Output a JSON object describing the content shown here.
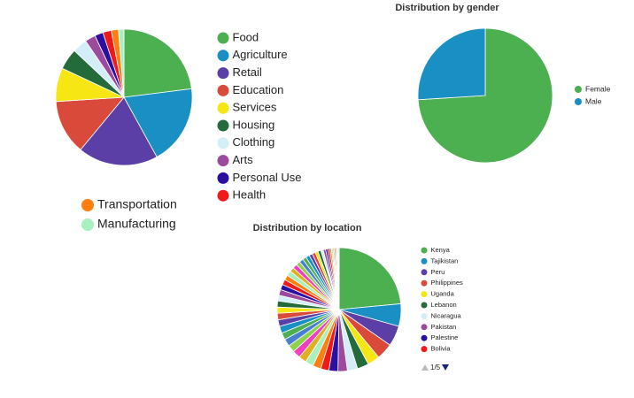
{
  "chart_data": [
    {
      "type": "pie",
      "categories": [
        "Food",
        "Agriculture",
        "Retail",
        "Education",
        "Services",
        "Housing",
        "Clothing",
        "Arts",
        "Personal Use",
        "Health",
        "Transportation",
        "Manufacturing"
      ],
      "values": [
        23,
        19,
        19,
        13,
        8,
        5,
        3.5,
        2.5,
        2,
        2,
        1.7,
        1.3
      ],
      "colors": [
        "#4caf50",
        "#1a8fc4",
        "#5b3ea6",
        "#d94a3a",
        "#f5e614",
        "#236b3a",
        "#d3eef8",
        "#9b4a9e",
        "#2a0fa0",
        "#f01818",
        "#ff7f0e",
        "#a8f0c0"
      ],
      "legend": "right"
    },
    {
      "type": "pie",
      "title": "Distribution by gender",
      "categories": [
        "Female",
        "Male"
      ],
      "values": [
        74,
        26
      ],
      "colors": [
        "#4caf50",
        "#1a8fc4"
      ],
      "legend": "right"
    },
    {
      "type": "pie",
      "title": "Distribution by location",
      "categories": [
        "Kenya",
        "Tajikistan",
        "Peru",
        "Philippines",
        "Uganda",
        "Lebanon",
        "Nicaragua",
        "Pakistan",
        "Palestine",
        "Bolivia",
        null,
        null,
        null,
        null,
        null,
        null,
        null,
        null,
        null,
        null,
        null,
        null,
        null,
        null,
        null,
        null,
        null,
        null,
        null,
        null,
        null,
        null,
        null,
        null,
        null,
        null,
        null,
        null,
        null,
        null,
        null,
        null,
        null,
        null,
        null,
        null,
        null,
        null,
        null,
        null
      ],
      "values": [
        22,
        5.5,
        5,
        4,
        3,
        2.8,
        2.5,
        2.3,
        2.2,
        2,
        2.0,
        2.0,
        1.9,
        1.9,
        1.8,
        1.8,
        1.7,
        1.7,
        1.6,
        1.6,
        1.5,
        1.5,
        1.4,
        1.4,
        1.3,
        1.3,
        1.2,
        1.2,
        1.1,
        1.1,
        1.0,
        1.0,
        0.9,
        0.9,
        0.8,
        0.8,
        0.7,
        0.7,
        0.6,
        0.6,
        0.5,
        0.5,
        0.4,
        0.4,
        0.3,
        0.3,
        0.3,
        0.2,
        0.2,
        0.2
      ],
      "colors": [
        "#4caf50",
        "#1a8fc4",
        "#5b3ea6",
        "#d94a3a",
        "#f5e614",
        "#236b3a",
        "#d3eef8",
        "#9b4a9e",
        "#2a0fa0",
        "#f01818",
        "#ff7f0e",
        "#a8f0c0",
        "#e0b020",
        "#f040c0",
        "#8fd14f",
        "#4a7fd0"
      ],
      "legend": "right",
      "legend_page": "1/5"
    }
  ]
}
